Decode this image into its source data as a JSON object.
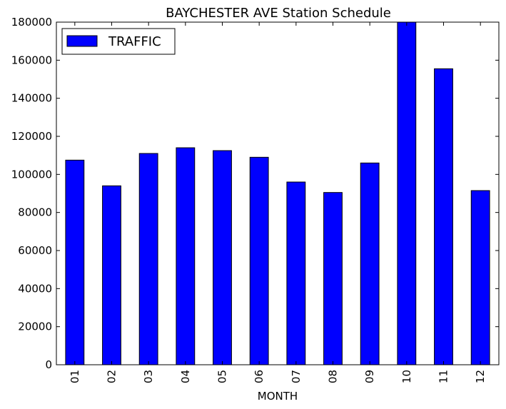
{
  "chart_data": {
    "type": "bar",
    "title": "BAYCHESTER AVE Station Schedule",
    "xlabel": "MONTH",
    "ylabel": "",
    "categories": [
      "01",
      "02",
      "03",
      "04",
      "05",
      "06",
      "07",
      "08",
      "09",
      "10",
      "11",
      "12"
    ],
    "series": [
      {
        "name": "TRAFFIC",
        "color": "#0000ff",
        "values": [
          107500,
          94000,
          111000,
          114000,
          112500,
          109000,
          96000,
          90500,
          106000,
          180000,
          155500,
          91500
        ]
      }
    ],
    "ylim": [
      0,
      180000
    ],
    "yticks": [
      0,
      20000,
      40000,
      60000,
      80000,
      100000,
      120000,
      140000,
      160000,
      180000
    ],
    "ytick_labels": [
      "0",
      "20000",
      "40000",
      "60000",
      "80000",
      "100000",
      "120000",
      "140000",
      "160000",
      "180000"
    ],
    "grid": false,
    "legend_position": "upper-left"
  }
}
